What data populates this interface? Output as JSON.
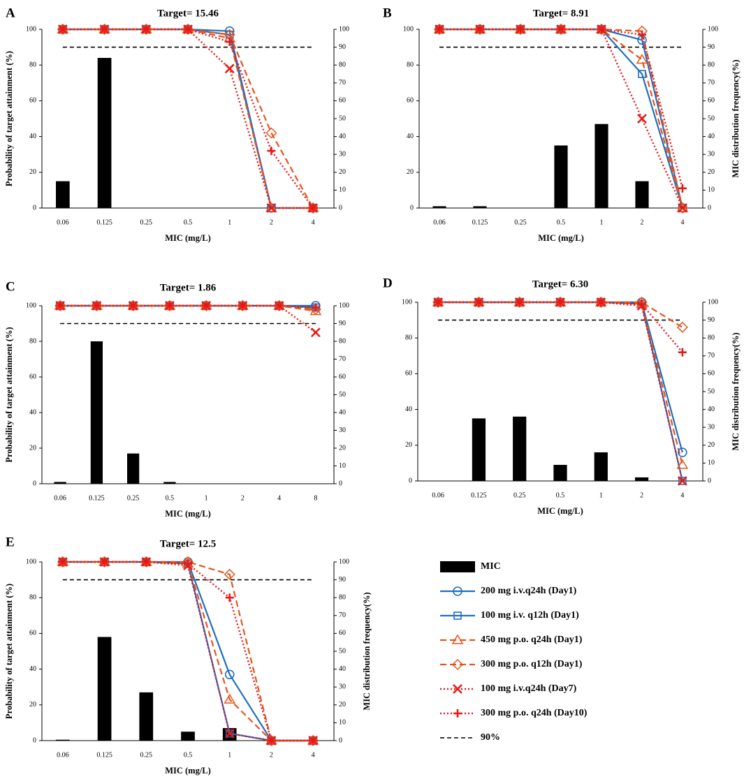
{
  "colors": {
    "bar": "#000000",
    "blue": "#1f6fc0",
    "orange": "#e8541a",
    "red": "#e81818",
    "dash": "#000000",
    "axis": "#000000"
  },
  "legend": [
    {
      "key": "mic",
      "label": "MIC"
    },
    {
      "key": "s1",
      "label": "200 mg i.v.q24h (Day1)"
    },
    {
      "key": "s2",
      "label": "100 mg i.v. q12h (Day1)"
    },
    {
      "key": "s3",
      "label": "450 mg p.o. q24h (Day1)"
    },
    {
      "key": "s4",
      "label": "300 mg p.o. q12h (Day1)"
    },
    {
      "key": "s5",
      "label": "100 mg i.v.q24h (Day7)"
    },
    {
      "key": "s6",
      "label": "300 mg p.o. q24h (Day10)"
    },
    {
      "key": "ref",
      "label": "90%"
    }
  ],
  "chart_data": [
    {
      "panel": "A",
      "type": "bar+line",
      "title": "Target= 15.46",
      "xlabel": "MIC (mg/L)",
      "ylabel": "Probability of target attainment  (%)",
      "y2label": "",
      "ylim": [
        0,
        100
      ],
      "y2lim": [
        0,
        100
      ],
      "yticks": [
        0,
        20,
        40,
        60,
        80,
        100
      ],
      "y2ticks": [
        0,
        10,
        20,
        30,
        40,
        50,
        60,
        70,
        80,
        90,
        100
      ],
      "reference_line": 90,
      "categories": [
        "0.06",
        "0.125",
        "0.25",
        "0.5",
        "1",
        "2",
        "4"
      ],
      "bars": [
        15,
        84,
        0,
        0,
        0,
        0,
        0
      ],
      "series": [
        {
          "key": "s1",
          "name": "200 mg i.v.q24h (Day1)",
          "values": [
            100,
            100,
            100,
            100,
            99,
            0,
            0
          ]
        },
        {
          "key": "s2",
          "name": "100 mg i.v. q12h (Day1)",
          "values": [
            100,
            100,
            100,
            100,
            97,
            0,
            0
          ]
        },
        {
          "key": "s3",
          "name": "450 mg p.o. q24h (Day1)",
          "values": [
            100,
            100,
            100,
            100,
            95,
            0,
            0
          ]
        },
        {
          "key": "s4",
          "name": "300 mg p.o. q12h (Day1)",
          "values": [
            100,
            100,
            100,
            100,
            97,
            42,
            0
          ]
        },
        {
          "key": "s5",
          "name": "100 mg i.v.q24h (Day7)",
          "values": [
            100,
            100,
            100,
            100,
            78,
            0,
            0
          ]
        },
        {
          "key": "s6",
          "name": "300 mg p.o. q24h (Day10)",
          "values": [
            100,
            100,
            100,
            100,
            93,
            32,
            0
          ]
        }
      ]
    },
    {
      "panel": "B",
      "type": "bar+line",
      "title": "Target= 8.91",
      "xlabel": "MIC (mg/L)",
      "ylabel": "",
      "y2label": "MIC distribution frequency(%)",
      "ylim": [
        0,
        100
      ],
      "y2lim": [
        0,
        100
      ],
      "yticks": [
        0,
        20,
        40,
        60,
        80,
        100
      ],
      "y2ticks": [
        0,
        10,
        20,
        30,
        40,
        50,
        60,
        70,
        80,
        90,
        100
      ],
      "reference_line": 90,
      "categories": [
        "0.06",
        "0.125",
        "0.25",
        "0.5",
        "1",
        "2",
        "4"
      ],
      "bars": [
        1,
        1,
        0,
        35,
        47,
        15,
        0
      ],
      "series": [
        {
          "key": "s1",
          "name": "200 mg i.v.q24h (Day1)",
          "values": [
            100,
            100,
            100,
            100,
            100,
            94,
            0
          ]
        },
        {
          "key": "s2",
          "name": "100 mg i.v. q12h (Day1)",
          "values": [
            100,
            100,
            100,
            100,
            100,
            75,
            0
          ]
        },
        {
          "key": "s3",
          "name": "450 mg p.o. q24h (Day1)",
          "values": [
            100,
            100,
            100,
            100,
            100,
            83,
            0
          ]
        },
        {
          "key": "s4",
          "name": "300 mg p.o. q12h (Day1)",
          "values": [
            100,
            100,
            100,
            100,
            100,
            99,
            0
          ]
        },
        {
          "key": "s5",
          "name": "100 mg i.v.q24h (Day7)",
          "values": [
            100,
            100,
            100,
            100,
            100,
            50,
            0
          ]
        },
        {
          "key": "s6",
          "name": "300 mg p.o. q24h (Day10)",
          "values": [
            100,
            100,
            100,
            100,
            100,
            97,
            11
          ]
        }
      ]
    },
    {
      "panel": "C",
      "type": "bar+line",
      "title": "Target= 1.86",
      "xlabel": "MIC (mg/L)",
      "ylabel": "Probability of target attainment  (%)",
      "y2label": "",
      "ylim": [
        0,
        100
      ],
      "y2lim": [
        0,
        100
      ],
      "yticks": [
        0,
        20,
        40,
        60,
        80,
        100
      ],
      "y2ticks": [
        0,
        10,
        20,
        30,
        40,
        50,
        60,
        70,
        80,
        90,
        100
      ],
      "reference_line": 90,
      "categories": [
        "0.06",
        "0.125",
        "0.25",
        "0.5",
        "1",
        "2",
        "4",
        "8"
      ],
      "bars": [
        1,
        80,
        17,
        1,
        0,
        0,
        0,
        0
      ],
      "series": [
        {
          "key": "s1",
          "name": "200 mg i.v.q24h (Day1)",
          "values": [
            100,
            100,
            100,
            100,
            100,
            100,
            100,
            100
          ]
        },
        {
          "key": "s2",
          "name": "100 mg i.v. q12h (Day1)",
          "values": [
            100,
            100,
            100,
            100,
            100,
            100,
            100,
            99
          ]
        },
        {
          "key": "s3",
          "name": "450 mg p.o. q24h (Day1)",
          "values": [
            100,
            100,
            100,
            100,
            100,
            100,
            100,
            97
          ]
        },
        {
          "key": "s4",
          "name": "300 mg p.o. q12h (Day1)",
          "values": [
            100,
            100,
            100,
            100,
            100,
            100,
            100,
            98
          ]
        },
        {
          "key": "s5",
          "name": "100 mg i.v.q24h (Day7)",
          "values": [
            100,
            100,
            100,
            100,
            100,
            100,
            100,
            85
          ]
        },
        {
          "key": "s6",
          "name": "300 mg p.o. q24h (Day10)",
          "values": [
            100,
            100,
            100,
            100,
            100,
            100,
            100,
            99
          ]
        }
      ]
    },
    {
      "panel": "D",
      "type": "bar+line",
      "title": "Target= 6.30",
      "xlabel": "MIC (mg/L)",
      "ylabel": "",
      "y2label": "MIC distribution frequency(%)",
      "ylim": [
        0,
        100
      ],
      "y2lim": [
        0,
        100
      ],
      "yticks": [
        0,
        20,
        40,
        60,
        80,
        100
      ],
      "y2ticks": [
        0,
        10,
        20,
        30,
        40,
        50,
        60,
        70,
        80,
        90,
        100
      ],
      "reference_line": 90,
      "categories": [
        "0.06",
        "0.125",
        "0.25",
        "0.5",
        "1",
        "2",
        "4"
      ],
      "bars": [
        0,
        35,
        36,
        9,
        16,
        2,
        0
      ],
      "series": [
        {
          "key": "s1",
          "name": "200 mg i.v.q24h (Day1)",
          "values": [
            100,
            100,
            100,
            100,
            100,
            100,
            16
          ]
        },
        {
          "key": "s2",
          "name": "100 mg i.v. q12h (Day1)",
          "values": [
            100,
            100,
            100,
            100,
            100,
            99,
            0
          ]
        },
        {
          "key": "s3",
          "name": "450 mg p.o. q24h (Day1)",
          "values": [
            100,
            100,
            100,
            100,
            100,
            99,
            9
          ]
        },
        {
          "key": "s4",
          "name": "300 mg p.o. q12h (Day1)",
          "values": [
            100,
            100,
            100,
            100,
            100,
            100,
            86
          ]
        },
        {
          "key": "s5",
          "name": "100 mg i.v.q24h (Day7)",
          "values": [
            100,
            100,
            100,
            100,
            100,
            98,
            0
          ]
        },
        {
          "key": "s6",
          "name": "300 mg p.o. q24h (Day10)",
          "values": [
            100,
            100,
            100,
            100,
            100,
            99,
            72
          ]
        }
      ]
    },
    {
      "panel": "E",
      "type": "bar+line",
      "title": "Target= 12.5",
      "xlabel": "MIC (mg/L)",
      "ylabel": "Probability of target attainment  (%)",
      "y2label": "MIC distribution frequency(%)",
      "ylim": [
        0,
        100
      ],
      "y2lim": [
        0,
        100
      ],
      "yticks": [
        0,
        20,
        40,
        60,
        80,
        100
      ],
      "y2ticks": [
        0,
        10,
        20,
        30,
        40,
        50,
        60,
        70,
        80,
        90,
        100
      ],
      "reference_line": 90,
      "categories": [
        "0.06",
        "0.125",
        "0.25",
        "0.5",
        "1",
        "2",
        "4"
      ],
      "bars": [
        0.5,
        58,
        27,
        5,
        7,
        0,
        0
      ],
      "series": [
        {
          "key": "s1",
          "name": "200 mg i.v.q24h (Day1)",
          "values": [
            100,
            100,
            100,
            100,
            37,
            0,
            0
          ]
        },
        {
          "key": "s2",
          "name": "100 mg i.v. q12h (Day1)",
          "values": [
            100,
            100,
            100,
            99,
            4,
            0,
            0
          ]
        },
        {
          "key": "s3",
          "name": "450 mg p.o. q24h (Day1)",
          "values": [
            100,
            100,
            100,
            99,
            23,
            0,
            0
          ]
        },
        {
          "key": "s4",
          "name": "300 mg p.o. q12h (Day1)",
          "values": [
            100,
            100,
            100,
            100,
            93,
            0,
            0
          ]
        },
        {
          "key": "s5",
          "name": "100 mg i.v.q24h (Day7)",
          "values": [
            100,
            100,
            100,
            98,
            4,
            0,
            0
          ]
        },
        {
          "key": "s6",
          "name": "300 mg p.o. q24h (Day10)",
          "values": [
            100,
            100,
            100,
            99,
            80,
            0,
            0
          ]
        }
      ]
    }
  ]
}
